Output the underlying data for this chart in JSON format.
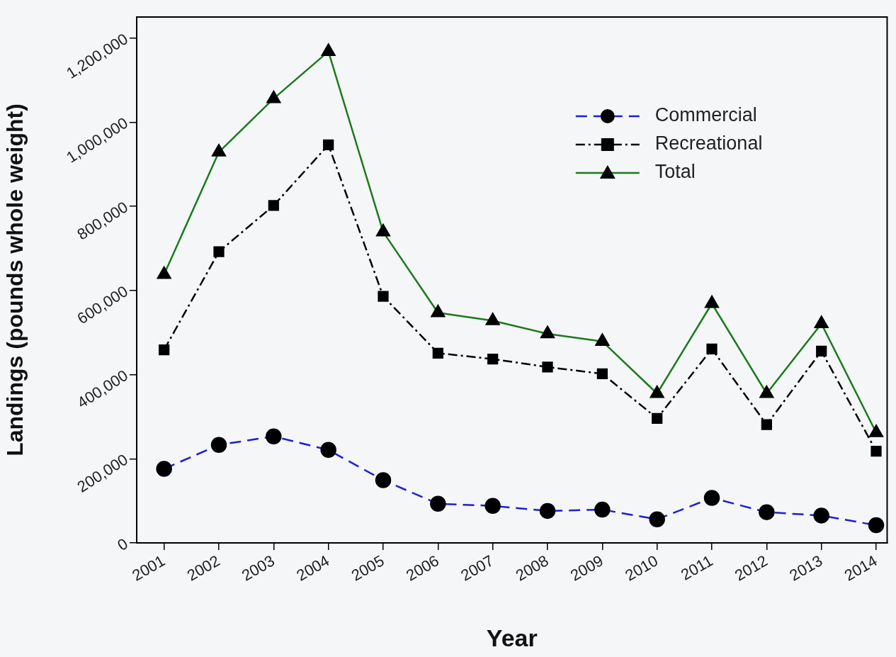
{
  "chart_data": {
    "type": "line",
    "xlabel": "Year",
    "ylabel": "Landings (pounds whole weight)",
    "x": [
      2001,
      2002,
      2003,
      2004,
      2005,
      2006,
      2007,
      2008,
      2009,
      2010,
      2011,
      2012,
      2013,
      2014
    ],
    "xlim": [
      2000.5,
      2014.2
    ],
    "xticks": [
      2001,
      2002,
      2003,
      2004,
      2005,
      2006,
      2007,
      2008,
      2009,
      2010,
      2011,
      2012,
      2013,
      2014
    ],
    "ylim": [
      0,
      1250000
    ],
    "yticks": [
      {
        "value": 0,
        "label": "0"
      },
      {
        "value": 200000,
        "label": "200,000"
      },
      {
        "value": 400000,
        "label": "400,000"
      },
      {
        "value": 600000,
        "label": "600,000"
      },
      {
        "value": 800000,
        "label": "800,000"
      },
      {
        "value": 1000000,
        "label": "1,000,000"
      },
      {
        "value": 1200000,
        "label": "1,200,000"
      }
    ],
    "legend": "top right",
    "grid": false,
    "series": [
      {
        "name": "Commercial",
        "color": "#1f1fd0",
        "marker": "circle",
        "line_style": "dashed",
        "values": [
          176000,
          233000,
          253000,
          221000,
          149000,
          93000,
          88000,
          76000,
          79000,
          56000,
          107000,
          73000,
          65000,
          42000
        ]
      },
      {
        "name": "Recreational",
        "color": "#000000",
        "marker": "square",
        "line_style": "dashdot",
        "values": [
          459000,
          692000,
          802000,
          946000,
          586000,
          451000,
          437000,
          418000,
          402000,
          296000,
          461000,
          281000,
          456000,
          218000
        ]
      },
      {
        "name": "Total",
        "color": "#1a7a1a",
        "marker": "triangle",
        "line_style": "solid",
        "values": [
          638000,
          929000,
          1056000,
          1168000,
          739000,
          547000,
          528000,
          497000,
          479000,
          355000,
          569000,
          355000,
          521000,
          262000
        ]
      }
    ]
  }
}
